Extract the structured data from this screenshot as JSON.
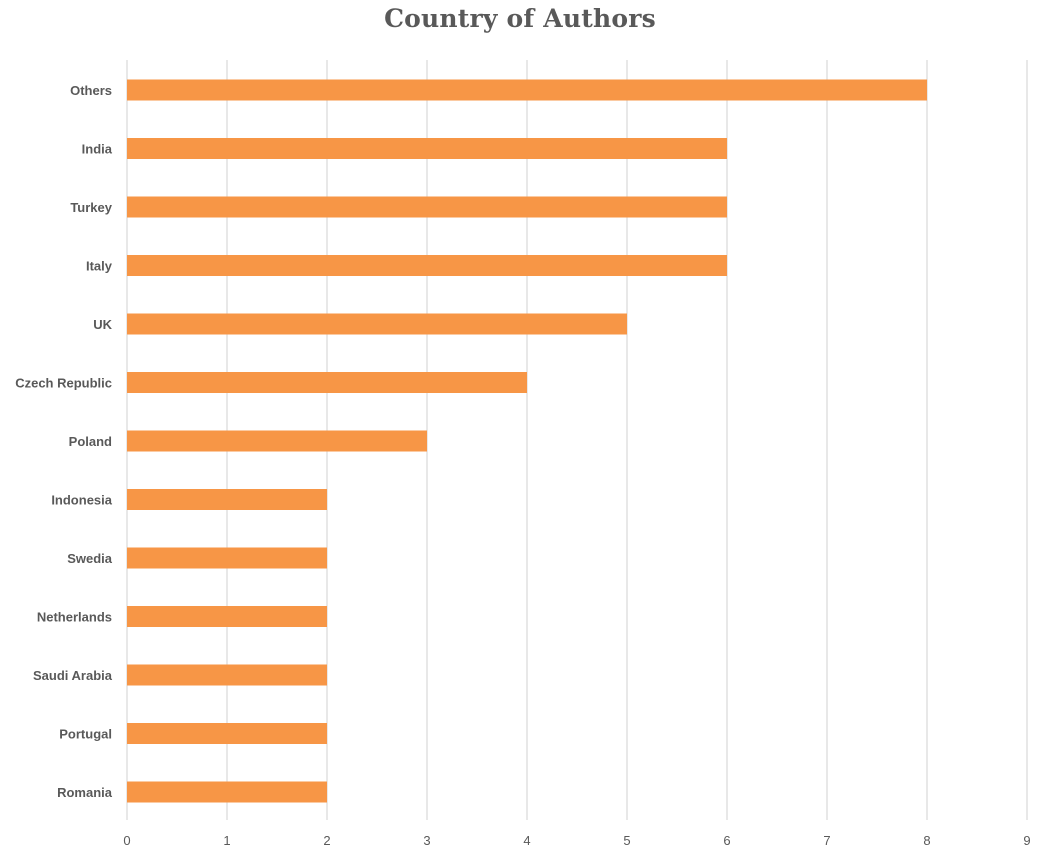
{
  "chart_data": {
    "type": "bar",
    "orientation": "horizontal",
    "title": "Country of Authors",
    "xlabel": "",
    "ylabel": "",
    "categories": [
      "Others",
      "India",
      "Turkey",
      "Italy",
      "UK",
      "Czech Republic",
      "Poland",
      "Indonesia",
      "Swedia",
      "Netherlands",
      "Saudi Arabia",
      "Portugal",
      "Romania"
    ],
    "values": [
      8,
      6,
      6,
      6,
      5,
      4,
      3,
      2,
      2,
      2,
      2,
      2,
      2
    ],
    "xlim": [
      0,
      9
    ],
    "x_ticks": [
      "0",
      "1",
      "2",
      "3",
      "4",
      "5",
      "6",
      "7",
      "8",
      "9"
    ],
    "grid": "vertical",
    "legend": "none",
    "bar_color": "#f79646",
    "grid_color": "#d9d9d9",
    "text_color": "#595959"
  }
}
